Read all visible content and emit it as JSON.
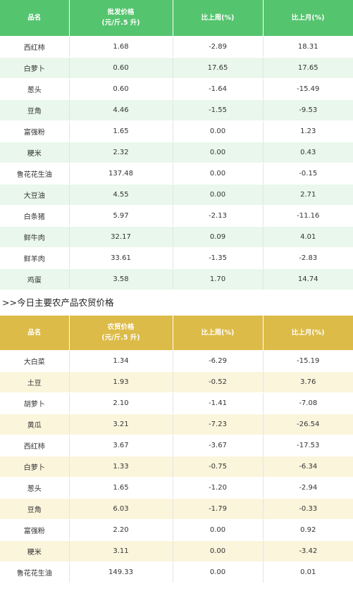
{
  "wholesale": {
    "headers": [
      "品名",
      "批发价格",
      "(元/斤.5 升)",
      "比上周(%)",
      "比上月(%)"
    ],
    "rows": [
      [
        "西红柿",
        "1.68",
        "-2.89",
        "18.31"
      ],
      [
        "白萝卜",
        "0.60",
        "17.65",
        "17.65"
      ],
      [
        "葱头",
        "0.60",
        "-1.64",
        "-15.49"
      ],
      [
        "豆角",
        "4.46",
        "-1.55",
        "-9.53"
      ],
      [
        "富强粉",
        "1.65",
        "0.00",
        "1.23"
      ],
      [
        "粳米",
        "2.32",
        "0.00",
        "0.43"
      ],
      [
        "鲁花花生油",
        "137.48",
        "0.00",
        "-0.15"
      ],
      [
        "大豆油",
        "4.55",
        "0.00",
        "2.71"
      ],
      [
        "白条猪",
        "5.97",
        "-2.13",
        "-11.16"
      ],
      [
        "鲜牛肉",
        "32.17",
        "0.09",
        "4.01"
      ],
      [
        "鲜羊肉",
        "33.61",
        "-1.35",
        "-2.83"
      ],
      [
        "鸡蛋",
        "3.58",
        "1.70",
        "14.74"
      ]
    ]
  },
  "section_title": ">>今日主要农产品农贸价格",
  "market": {
    "headers": [
      "品名",
      "农贸价格",
      "(元/斤.5 升)",
      "比上周(%)",
      "比上月(%)"
    ],
    "rows": [
      [
        "大白菜",
        "1.34",
        "-6.29",
        "-15.19"
      ],
      [
        "土豆",
        "1.93",
        "-0.52",
        "3.76"
      ],
      [
        "胡萝卜",
        "2.10",
        "-1.41",
        "-7.08"
      ],
      [
        "黄瓜",
        "3.21",
        "-7.23",
        "-26.54"
      ],
      [
        "西红柿",
        "3.67",
        "-3.67",
        "-17.53"
      ],
      [
        "白萝卜",
        "1.33",
        "-0.75",
        "-6.34"
      ],
      [
        "葱头",
        "1.65",
        "-1.20",
        "-2.94"
      ],
      [
        "豆角",
        "6.03",
        "-1.79",
        "-0.33"
      ],
      [
        "富强粉",
        "2.20",
        "0.00",
        "0.92"
      ],
      [
        "粳米",
        "3.11",
        "0.00",
        "-3.42"
      ],
      [
        "鲁花花生油",
        "149.33",
        "0.00",
        "0.01"
      ]
    ]
  },
  "colors": {
    "wholesale_header": "#55c46e",
    "wholesale_stripe": "#e9f7ec",
    "market_header": "#dcbb48",
    "market_stripe": "#fbf5dc"
  }
}
